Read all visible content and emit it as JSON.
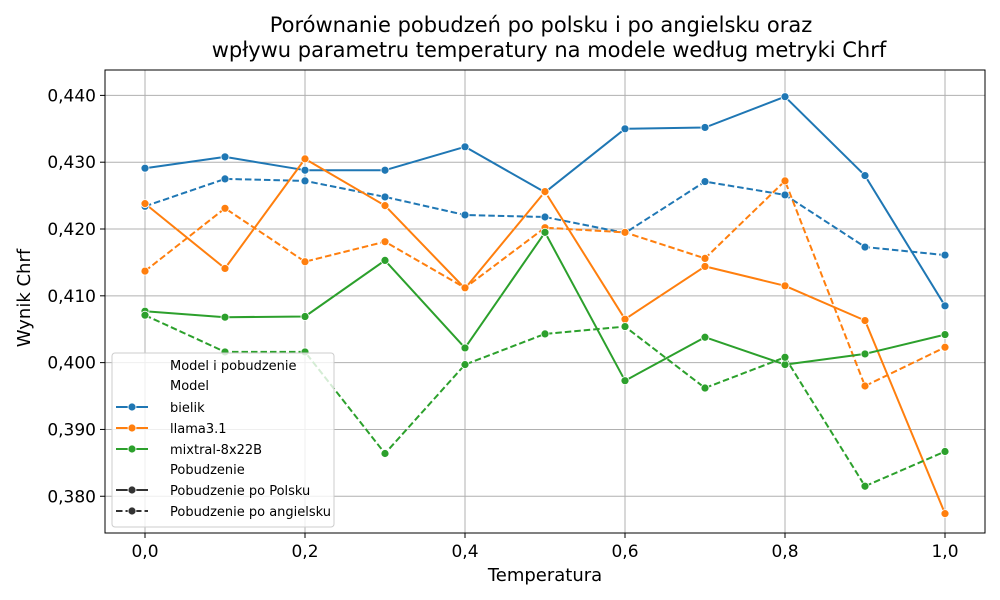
{
  "chart_data": {
    "type": "line",
    "title_lines": [
      "Porównanie pobudzeń po polsku i po angielsku oraz",
      "wpływu parametru temperatury na modele według metryki Chrf"
    ],
    "xlabel": "Temperatura",
    "ylabel": "Wynik Chrf",
    "xlim": [
      -0.05,
      1.05
    ],
    "ylim": [
      0.3745,
      0.4438
    ],
    "x_ticks": [
      0.0,
      0.2,
      0.4,
      0.6,
      0.8,
      1.0
    ],
    "x_tick_labels": [
      "0,0",
      "0,2",
      "0,4",
      "0,6",
      "0,8",
      "1,0"
    ],
    "y_ticks": [
      0.38,
      0.39,
      0.4,
      0.41,
      0.42,
      0.43,
      0.44
    ],
    "y_tick_labels": [
      "0,380",
      "0,390",
      "0,400",
      "0,410",
      "0,420",
      "0,430",
      "0,440"
    ],
    "grid": true,
    "x": [
      0.0,
      0.1,
      0.2,
      0.3,
      0.4,
      0.5,
      0.6,
      0.7,
      0.8,
      0.9,
      1.0
    ],
    "series": [
      {
        "model": "bielik",
        "prompt": "Pobudzenie po Polsku",
        "color": "#1f77b4",
        "dash": "solid",
        "values": [
          0.4291,
          0.4308,
          0.4288,
          0.4288,
          0.4323,
          0.4255,
          0.435,
          0.4352,
          0.4398,
          0.428,
          0.4085
        ]
      },
      {
        "model": "bielik",
        "prompt": "Pobudzenie po angielsku",
        "color": "#1f77b4",
        "dash": "dashed",
        "values": [
          0.4234,
          0.4275,
          0.4272,
          0.4248,
          0.4221,
          0.4218,
          0.4194,
          0.4271,
          0.4251,
          0.4173,
          0.4161
        ]
      },
      {
        "model": "llama3.1",
        "prompt": "Pobudzenie po Polsku",
        "color": "#ff7f0e",
        "dash": "solid",
        "values": [
          0.4238,
          0.4141,
          0.4305,
          0.4235,
          0.4111,
          0.4256,
          0.4065,
          0.4144,
          0.4115,
          0.4063,
          0.3774
        ]
      },
      {
        "model": "llama3.1",
        "prompt": "Pobudzenie po angielsku",
        "color": "#ff7f0e",
        "dash": "dashed",
        "values": [
          0.4137,
          0.4231,
          0.4151,
          0.4181,
          0.4112,
          0.4202,
          0.4195,
          0.4156,
          0.4272,
          0.3965,
          0.4023
        ]
      },
      {
        "model": "mixtral-8x22B",
        "prompt": "Pobudzenie po Polsku",
        "color": "#2ca02c",
        "dash": "solid",
        "values": [
          0.4077,
          0.4068,
          0.4069,
          0.4153,
          0.4022,
          0.4195,
          0.3973,
          0.4038,
          0.3997,
          0.4013,
          0.4042
        ]
      },
      {
        "model": "mixtral-8x22B",
        "prompt": "Pobudzenie po angielsku",
        "color": "#2ca02c",
        "dash": "dashed",
        "values": [
          0.4071,
          0.4016,
          0.4016,
          0.3864,
          0.3997,
          0.4043,
          0.4054,
          0.3962,
          0.4008,
          0.3815,
          0.3867
        ]
      }
    ],
    "legend": {
      "placement": "lower-left",
      "title": "Model i pobudzenie",
      "model_heading": "Model",
      "models": [
        {
          "label": "bielik",
          "color": "#1f77b4"
        },
        {
          "label": "llama3.1",
          "color": "#ff7f0e"
        },
        {
          "label": "mixtral-8x22B",
          "color": "#2ca02c"
        }
      ],
      "prompt_heading": "Pobudzenie",
      "prompts": [
        {
          "label": "Pobudzenie po Polsku",
          "dash": "solid"
        },
        {
          "label": "Pobudzenie po angielsku",
          "dash": "dashed"
        }
      ]
    }
  }
}
